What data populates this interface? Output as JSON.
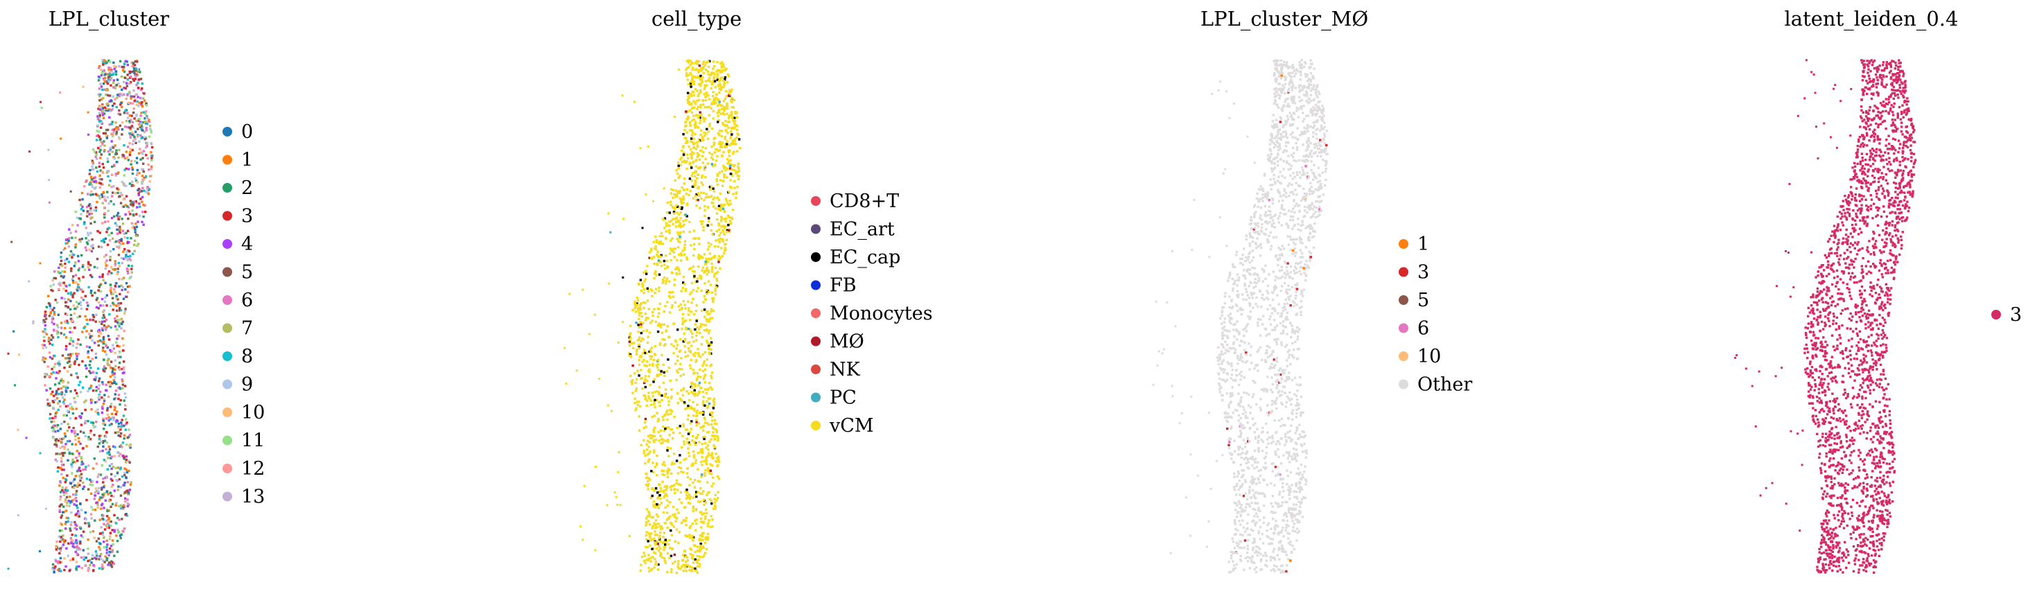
{
  "chart_data": [
    {
      "type": "scatter",
      "title": "LPL_cluster",
      "legend_position": "right",
      "grid": false,
      "axes_visible": false,
      "legend": [
        {
          "label": "0",
          "color": "#1f77b4"
        },
        {
          "label": "1",
          "color": "#ff7f0e"
        },
        {
          "label": "2",
          "color": "#279e68"
        },
        {
          "label": "3",
          "color": "#d62728"
        },
        {
          "label": "4",
          "color": "#aa40fc"
        },
        {
          "label": "5",
          "color": "#8c564b"
        },
        {
          "label": "6",
          "color": "#e377c2"
        },
        {
          "label": "7",
          "color": "#b5bd61"
        },
        {
          "label": "8",
          "color": "#17becf"
        },
        {
          "label": "9",
          "color": "#aec7e8"
        },
        {
          "label": "10",
          "color": "#ffbb78"
        },
        {
          "label": "11",
          "color": "#98df8a"
        },
        {
          "label": "12",
          "color": "#ff9896"
        },
        {
          "label": "13",
          "color": "#c5b0d5"
        }
      ],
      "point_mix": [
        {
          "color": "#1f77b4",
          "weight": 1
        },
        {
          "color": "#ff7f0e",
          "weight": 1
        },
        {
          "color": "#279e68",
          "weight": 1
        },
        {
          "color": "#d62728",
          "weight": 1.4
        },
        {
          "color": "#aa40fc",
          "weight": 0.8
        },
        {
          "color": "#8c564b",
          "weight": 0.9
        },
        {
          "color": "#e377c2",
          "weight": 1
        },
        {
          "color": "#b5bd61",
          "weight": 0.7
        },
        {
          "color": "#17becf",
          "weight": 0.9
        },
        {
          "color": "#aec7e8",
          "weight": 0.8
        },
        {
          "color": "#ffbb78",
          "weight": 0.6
        },
        {
          "color": "#98df8a",
          "weight": 0.6
        },
        {
          "color": "#ff9896",
          "weight": 0.6
        },
        {
          "color": "#c5b0d5",
          "weight": 0.6
        }
      ]
    },
    {
      "type": "scatter",
      "title": "cell_type",
      "legend_position": "right",
      "grid": false,
      "axes_visible": false,
      "legend": [
        {
          "label": "CD8+T",
          "color": "#e8445a"
        },
        {
          "label": "EC_art",
          "color": "#5a4a7a"
        },
        {
          "label": "EC_cap",
          "color": "#000000"
        },
        {
          "label": "FB",
          "color": "#0a2fd8"
        },
        {
          "label": "Monocytes",
          "color": "#f26868"
        },
        {
          "label": "MØ",
          "color": "#b0182c"
        },
        {
          "label": "NK",
          "color": "#d9473e"
        },
        {
          "label": "PC",
          "color": "#40aec0"
        },
        {
          "label": "vCM",
          "color": "#f5dc1c"
        }
      ],
      "point_mix": [
        {
          "color": "#f5dc1c",
          "weight": 20
        },
        {
          "color": "#000000",
          "weight": 1.2
        },
        {
          "color": "#b0182c",
          "weight": 0.15
        },
        {
          "color": "#40aec0",
          "weight": 0.1
        }
      ]
    },
    {
      "type": "scatter",
      "title": "LPL_cluster_MØ",
      "legend_position": "right",
      "grid": false,
      "axes_visible": false,
      "legend": [
        {
          "label": "1",
          "color": "#ff7f0e"
        },
        {
          "label": "3",
          "color": "#d62728"
        },
        {
          "label": "5",
          "color": "#8c564b"
        },
        {
          "label": "6",
          "color": "#e377c2"
        },
        {
          "label": "10",
          "color": "#ffbb78"
        },
        {
          "label": "Other",
          "color": "#dcdcdc"
        }
      ],
      "point_mix": [
        {
          "color": "#dedcdc",
          "weight": 60
        },
        {
          "color": "#d62728",
          "weight": 0.4
        },
        {
          "color": "#ff7f0e",
          "weight": 0.15
        },
        {
          "color": "#e377c2",
          "weight": 0.15
        }
      ]
    },
    {
      "type": "scatter",
      "title": "latent_leiden_0.4",
      "legend_position": "right",
      "grid": false,
      "axes_visible": false,
      "legend": [
        {
          "label": "3",
          "color": "#d62a66"
        }
      ],
      "point_mix": [
        {
          "color": "#d62a66",
          "weight": 1
        }
      ]
    }
  ]
}
